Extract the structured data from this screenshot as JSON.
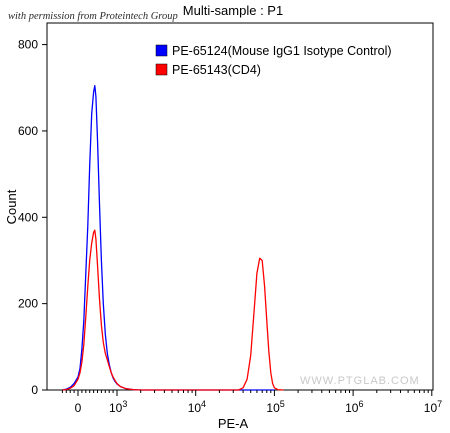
{
  "credit": "with permission from Proteintech Group",
  "watermark": "WWW.PTGLAB.COM",
  "chart_data": {
    "type": "line",
    "title": "Multi-sample : P1",
    "xlabel": "PE-A",
    "ylabel": "Count",
    "x_scale": "biexponential",
    "ylim": [
      0,
      850
    ],
    "y_ticks": [
      0,
      200,
      400,
      600,
      800
    ],
    "x_ticks": [
      "0",
      "10^3",
      "10^4",
      "10^5",
      "10^6",
      "10^7"
    ],
    "grid": false,
    "legend_position": "top-right",
    "series": [
      {
        "name": "PE-65124(Mouse IgG1 Isotype Control)",
        "color": "#0000ff",
        "points": [
          [
            -400,
            0
          ],
          [
            -300,
            2
          ],
          [
            -200,
            6
          ],
          [
            -100,
            15
          ],
          [
            0,
            30
          ],
          [
            50,
            50
          ],
          [
            100,
            95
          ],
          [
            150,
            160
          ],
          [
            200,
            270
          ],
          [
            250,
            380
          ],
          [
            300,
            520
          ],
          [
            350,
            640
          ],
          [
            400,
            690
          ],
          [
            430,
            705
          ],
          [
            460,
            680
          ],
          [
            500,
            580
          ],
          [
            550,
            430
          ],
          [
            600,
            300
          ],
          [
            650,
            200
          ],
          [
            700,
            130
          ],
          [
            750,
            85
          ],
          [
            800,
            60
          ],
          [
            850,
            40
          ],
          [
            900,
            28
          ],
          [
            950,
            20
          ],
          [
            1000,
            14
          ],
          [
            1100,
            8
          ],
          [
            1300,
            3
          ],
          [
            1600,
            1
          ],
          [
            2000,
            0
          ],
          [
            100000,
            0
          ]
        ]
      },
      {
        "name": "PE-65143(CD4)",
        "color": "#ff0000",
        "points": [
          [
            -400,
            0
          ],
          [
            -300,
            1
          ],
          [
            -200,
            4
          ],
          [
            -100,
            10
          ],
          [
            0,
            25
          ],
          [
            50,
            40
          ],
          [
            100,
            65
          ],
          [
            150,
            105
          ],
          [
            200,
            170
          ],
          [
            250,
            240
          ],
          [
            300,
            300
          ],
          [
            350,
            340
          ],
          [
            400,
            365
          ],
          [
            430,
            370
          ],
          [
            460,
            350
          ],
          [
            500,
            290
          ],
          [
            550,
            210
          ],
          [
            600,
            150
          ],
          [
            650,
            110
          ],
          [
            700,
            85
          ],
          [
            750,
            70
          ],
          [
            800,
            55
          ],
          [
            850,
            40
          ],
          [
            900,
            30
          ],
          [
            950,
            22
          ],
          [
            1000,
            15
          ],
          [
            1100,
            8
          ],
          [
            1300,
            3
          ],
          [
            1600,
            1
          ],
          [
            2000,
            0
          ],
          [
            35000,
            0
          ],
          [
            40000,
            5
          ],
          [
            45000,
            25
          ],
          [
            50000,
            80
          ],
          [
            55000,
            180
          ],
          [
            60000,
            270
          ],
          [
            65000,
            305
          ],
          [
            70000,
            300
          ],
          [
            75000,
            240
          ],
          [
            80000,
            160
          ],
          [
            85000,
            90
          ],
          [
            90000,
            40
          ],
          [
            95000,
            15
          ],
          [
            100000,
            5
          ],
          [
            110000,
            1
          ],
          [
            130000,
            0
          ]
        ]
      }
    ]
  }
}
